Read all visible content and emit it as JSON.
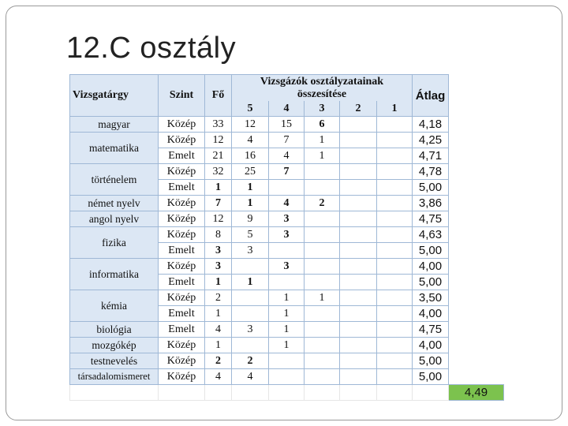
{
  "title": "12.C osztály",
  "headers": {
    "subject": "Vizsgatárgy",
    "level": "Szint",
    "count": "Fő",
    "grades_title_1": "Vizsgázók osztályzatainak",
    "grades_title_2": "összesítése",
    "g5": "5",
    "g4": "4",
    "g3": "3",
    "g2": "2",
    "g1": "1",
    "average": "Átlag"
  },
  "subjects": {
    "magyar": "magyar",
    "matematika": "matematika",
    "tortenelem": "történelem",
    "nemet": "német nyelv",
    "angol": "angol nyelv",
    "fizika": "fizika",
    "informatika": "informatika",
    "kemia": "kémia",
    "biologia": "biológia",
    "mozgokep": "mozgókép",
    "testneveles": "testnevelés",
    "tarsadalom": "társadalomismeret"
  },
  "rows": [
    {
      "level": "Közép",
      "count": "33",
      "g5": "12",
      "g4": "15",
      "g3": "6",
      "g2": "",
      "g1": "",
      "avg": "4,18"
    },
    {
      "level": "Közép",
      "count": "12",
      "g5": "4",
      "g4": "7",
      "g3": "1",
      "g2": "",
      "g1": "",
      "avg": "4,25"
    },
    {
      "level": "Emelt",
      "count": "21",
      "g5": "16",
      "g4": "4",
      "g3": "1",
      "g2": "",
      "g1": "",
      "avg": "4,71"
    },
    {
      "level": "Közép",
      "count": "32",
      "g5": "25",
      "g4": "7",
      "g3": "",
      "g2": "",
      "g1": "",
      "avg": "4,78"
    },
    {
      "level": "Emelt",
      "count": "1",
      "g5": "1",
      "g4": "",
      "g3": "",
      "g2": "",
      "g1": "",
      "avg": "5,00"
    },
    {
      "level": "Közép",
      "count": "7",
      "g5": "1",
      "g4": "4",
      "g3": "2",
      "g2": "",
      "g1": "",
      "avg": "3,86"
    },
    {
      "level": "Közép",
      "count": "12",
      "g5": "9",
      "g4": "3",
      "g3": "",
      "g2": "",
      "g1": "",
      "avg": "4,75"
    },
    {
      "level": "Közép",
      "count": "8",
      "g5": "5",
      "g4": "3",
      "g3": "",
      "g2": "",
      "g1": "",
      "avg": "4,63"
    },
    {
      "level": "Emelt",
      "count": "3",
      "g5": "3",
      "g4": "",
      "g3": "",
      "g2": "",
      "g1": "",
      "avg": "5,00"
    },
    {
      "level": "Közép",
      "count": "3",
      "g5": "",
      "g4": "3",
      "g3": "",
      "g2": "",
      "g1": "",
      "avg": "4,00"
    },
    {
      "level": "Emelt",
      "count": "1",
      "g5": "1",
      "g4": "",
      "g3": "",
      "g2": "",
      "g1": "",
      "avg": "5,00"
    },
    {
      "level": "Közép",
      "count": "2",
      "g5": "",
      "g4": "1",
      "g3": "1",
      "g2": "",
      "g1": "",
      "avg": "3,50"
    },
    {
      "level": "Emelt",
      "count": "1",
      "g5": "",
      "g4": "1",
      "g3": "",
      "g2": "",
      "g1": "",
      "avg": "4,00"
    },
    {
      "level": "Emelt",
      "count": "4",
      "g5": "3",
      "g4": "1",
      "g3": "",
      "g2": "",
      "g1": "",
      "avg": "4,75"
    },
    {
      "level": "Közép",
      "count": "1",
      "g5": "",
      "g4": "1",
      "g3": "",
      "g2": "",
      "g1": "",
      "avg": "4,00"
    },
    {
      "level": "Közép",
      "count": "2",
      "g5": "2",
      "g4": "",
      "g3": "",
      "g2": "",
      "g1": "",
      "avg": "5,00"
    },
    {
      "level": "Közép",
      "count": "4",
      "g5": "4",
      "g4": "",
      "g3": "",
      "g2": "",
      "g1": "",
      "avg": "5,00"
    }
  ],
  "overall_avg": "4,49",
  "colors": {
    "header_bg": "#dce7f4",
    "border": "#9fb8d6",
    "highlight": "#7cc24e"
  }
}
